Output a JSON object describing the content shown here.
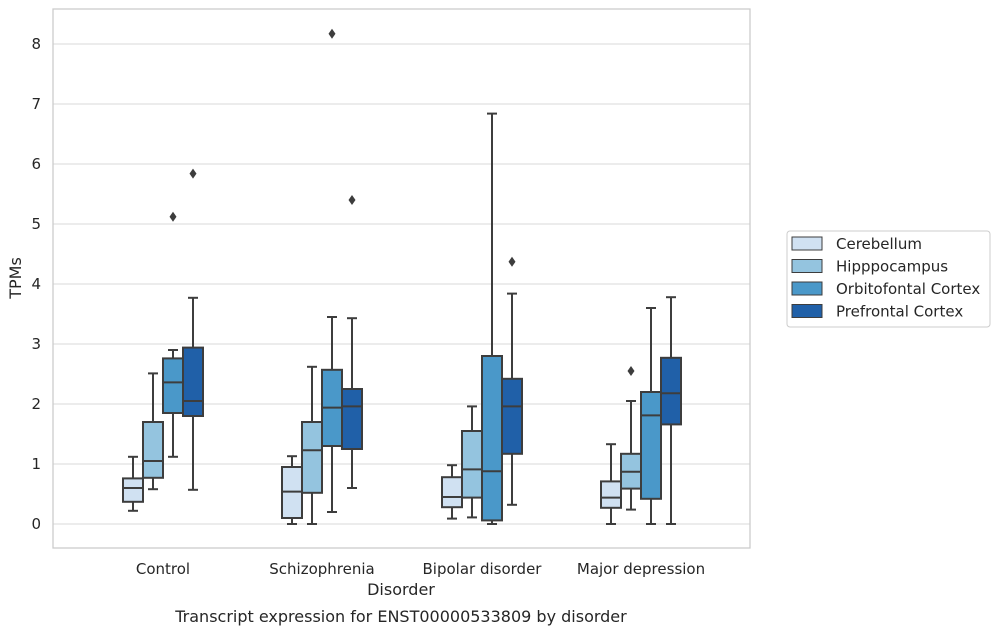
{
  "chart_data": {
    "type": "box",
    "title": "",
    "caption": "Transcript expression for ENST00000533809 by disorder",
    "xlabel": "Disorder",
    "ylabel": "TPMs",
    "ylim": [
      -0.4,
      8.6
    ],
    "yticks": [
      "0",
      "1",
      "2",
      "3",
      "4",
      "5",
      "6",
      "7",
      "8"
    ],
    "grid": "horizontal",
    "legend_position": "right",
    "categories": [
      "Control",
      "Schizophrenia",
      "Bipolar disorder",
      "Major depression"
    ],
    "series": [
      {
        "name": "Cerebellum",
        "color": "#d0e1f2",
        "boxes": [
          {
            "whislo": 0.22,
            "q1": 0.37,
            "med": 0.6,
            "q3": 0.76,
            "whishi": 1.12,
            "fliers": []
          },
          {
            "whislo": 0.0,
            "q1": 0.1,
            "med": 0.54,
            "q3": 0.95,
            "whishi": 1.13,
            "fliers": []
          },
          {
            "whislo": 0.09,
            "q1": 0.28,
            "med": 0.45,
            "q3": 0.78,
            "whishi": 0.98,
            "fliers": []
          },
          {
            "whislo": 0.0,
            "q1": 0.27,
            "med": 0.44,
            "q3": 0.71,
            "whishi": 1.33,
            "fliers": []
          }
        ]
      },
      {
        "name": "Hipppocampus",
        "color": "#94c4df",
        "boxes": [
          {
            "whislo": 0.58,
            "q1": 0.77,
            "med": 1.05,
            "q3": 1.7,
            "whishi": 2.51,
            "fliers": []
          },
          {
            "whislo": 0.0,
            "q1": 0.52,
            "med": 1.23,
            "q3": 1.7,
            "whishi": 2.62,
            "fliers": []
          },
          {
            "whislo": 0.11,
            "q1": 0.44,
            "med": 0.91,
            "q3": 1.55,
            "whishi": 1.96,
            "fliers": []
          },
          {
            "whislo": 0.24,
            "q1": 0.59,
            "med": 0.87,
            "q3": 1.17,
            "whishi": 2.05,
            "fliers": [
              2.55
            ]
          }
        ]
      },
      {
        "name": "Orbitofontal Cortex",
        "color": "#4a98c9",
        "boxes": [
          {
            "whislo": 1.12,
            "q1": 1.85,
            "med": 2.36,
            "q3": 2.76,
            "whishi": 2.9,
            "fliers": [
              5.12
            ]
          },
          {
            "whislo": 0.2,
            "q1": 1.3,
            "med": 1.94,
            "q3": 2.57,
            "whishi": 3.45,
            "fliers": [
              8.17
            ]
          },
          {
            "whislo": 0.0,
            "q1": 0.06,
            "med": 0.88,
            "q3": 2.8,
            "whishi": 6.84,
            "fliers": []
          },
          {
            "whislo": 0.0,
            "q1": 0.42,
            "med": 1.81,
            "q3": 2.2,
            "whishi": 3.6,
            "fliers": []
          }
        ]
      },
      {
        "name": "Prefrontal Cortex",
        "color": "#2060a8",
        "boxes": [
          {
            "whislo": 0.57,
            "q1": 1.8,
            "med": 2.05,
            "q3": 2.94,
            "whishi": 3.77,
            "fliers": [
              5.84
            ]
          },
          {
            "whislo": 0.6,
            "q1": 1.25,
            "med": 1.96,
            "q3": 2.25,
            "whishi": 3.43,
            "fliers": [
              5.4
            ]
          },
          {
            "whislo": 0.32,
            "q1": 1.17,
            "med": 1.96,
            "q3": 2.42,
            "whishi": 3.84,
            "fliers": [
              4.37
            ]
          },
          {
            "whislo": 0.0,
            "q1": 1.66,
            "med": 2.18,
            "q3": 2.77,
            "whishi": 3.78,
            "fliers": []
          }
        ]
      }
    ]
  }
}
